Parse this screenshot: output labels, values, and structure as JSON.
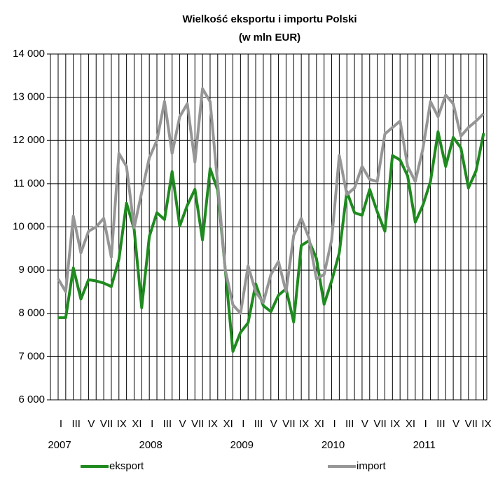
{
  "chart_data": {
    "type": "line",
    "title": "Wielkość eksportu i importu Polski",
    "subtitle": "(w mln EUR)",
    "categories": [
      "I",
      null,
      "III",
      null,
      "V",
      null,
      "VII",
      null,
      "IX",
      null,
      "XI",
      null,
      "I",
      null,
      "III",
      null,
      "V",
      null,
      "VII",
      null,
      "IX",
      null,
      "XI",
      null,
      "I",
      null,
      "III",
      null,
      "V",
      null,
      "VII",
      null,
      "IX",
      null,
      "XI",
      null,
      "I",
      null,
      "III",
      null,
      "V",
      null,
      "VII",
      null,
      "IX",
      null,
      "XI",
      null,
      "I",
      null,
      "III",
      null,
      "V",
      null,
      "VII",
      null,
      "IX"
    ],
    "years": [
      "2007",
      "2008",
      "2009",
      "2010",
      "2011"
    ],
    "series": [
      {
        "name": "eksport",
        "color": "#1f8a1f",
        "values": [
          7900,
          7900,
          9050,
          8330,
          8780,
          8750,
          8700,
          8620,
          9250,
          10550,
          9950,
          8130,
          9780,
          10330,
          10170,
          11280,
          10020,
          10500,
          10870,
          9700,
          11350,
          10850,
          9000,
          7120,
          7560,
          7780,
          8680,
          8180,
          8040,
          8420,
          8570,
          7800,
          9570,
          9680,
          9270,
          8210,
          8750,
          9400,
          10820,
          10330,
          10270,
          10870,
          10350,
          9900,
          11650,
          11550,
          11180,
          10110,
          10500,
          11050,
          12200,
          11400,
          12070,
          11830,
          10900,
          11300,
          12170
        ]
      },
      {
        "name": "import",
        "color": "#969696",
        "values": [
          8800,
          8500,
          10250,
          9400,
          9900,
          10000,
          10200,
          9300,
          11700,
          11400,
          9980,
          10800,
          11600,
          12000,
          12900,
          11700,
          12550,
          12850,
          11500,
          13200,
          12900,
          11000,
          9000,
          8200,
          8000,
          9100,
          8500,
          8250,
          8900,
          9200,
          8500,
          9800,
          10200,
          9750,
          8800,
          8900,
          9700,
          11650,
          10750,
          10900,
          11400,
          11100,
          11050,
          12150,
          12300,
          12450,
          11400,
          11050,
          11800,
          12900,
          12550,
          13050,
          12850,
          12100,
          12300,
          12450,
          12620
        ]
      }
    ],
    "ylim": [
      6000,
      14000
    ],
    "yticks": [
      {
        "value": 6000,
        "label": "6 000"
      },
      {
        "value": 7000,
        "label": "7 000"
      },
      {
        "value": 8000,
        "label": "8 000"
      },
      {
        "value": 9000,
        "label": "9 000"
      },
      {
        "value": 10000,
        "label": "10 000"
      },
      {
        "value": 11000,
        "label": "11 000"
      },
      {
        "value": 12000,
        "label": "12 000"
      },
      {
        "value": 13000,
        "label": "13 000"
      },
      {
        "value": 14000,
        "label": "14 000"
      }
    ],
    "grid": true,
    "legend": "bottom"
  }
}
